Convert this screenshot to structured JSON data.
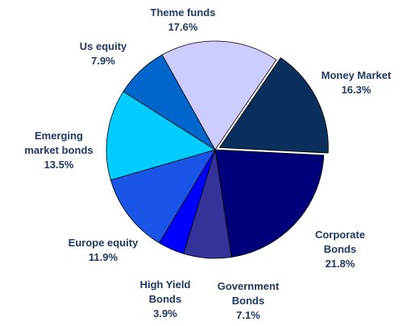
{
  "chart_data": {
    "type": "pie",
    "title": "",
    "start_angle_deg": -55.8,
    "direction": "clockwise",
    "slices": [
      {
        "name": "Money Market",
        "label_lines": [
          "Money Market",
          "16.3%"
        ],
        "value": 16.3,
        "color": "#0B2F5C"
      },
      {
        "name": "Corporate Bonds",
        "label_lines": [
          "Corporate",
          "Bonds",
          "21.8%"
        ],
        "value": 21.8,
        "color": "#00007A"
      },
      {
        "name": "Government Bonds",
        "label_lines": [
          "Government",
          "Bonds",
          "7.1%"
        ],
        "value": 7.1,
        "color": "#333399"
      },
      {
        "name": "High Yield Bonds",
        "label_lines": [
          "High Yield",
          "Bonds",
          "3.9%"
        ],
        "value": 3.9,
        "color": "#0000FF"
      },
      {
        "name": "Europe equity",
        "label_lines": [
          "Europe equity",
          "11.9%"
        ],
        "value": 11.9,
        "color": "#1A55E8"
      },
      {
        "name": "Emerging market bonds",
        "label_lines": [
          "Emerging",
          "market bonds",
          "13.5%"
        ],
        "value": 13.5,
        "color": "#00CCFF"
      },
      {
        "name": "Us equity",
        "label_lines": [
          "Us equity",
          "7.9%"
        ],
        "value": 7.9,
        "color": "#0066CC"
      },
      {
        "name": "Theme funds",
        "label_lines": [
          "Theme funds",
          "17.6%"
        ],
        "value": 17.6,
        "color": "#CCCCFF"
      }
    ],
    "legend": "none",
    "label_color": "#1F3864"
  }
}
